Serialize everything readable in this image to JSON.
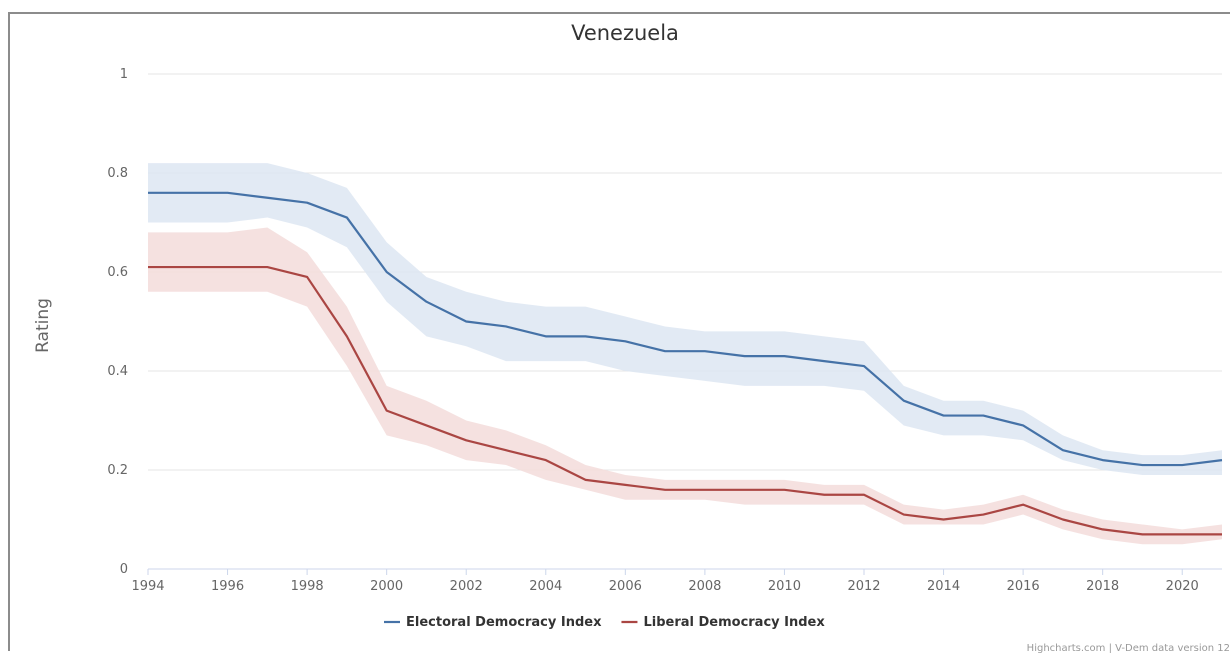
{
  "chart_data": {
    "type": "line",
    "title": "Venezuela",
    "ylabel": "Rating",
    "xlabel": "",
    "x": [
      1994,
      1995,
      1996,
      1997,
      1998,
      1999,
      2000,
      2001,
      2002,
      2003,
      2004,
      2005,
      2006,
      2007,
      2008,
      2009,
      2010,
      2011,
      2012,
      2013,
      2014,
      2015,
      2016,
      2017,
      2018,
      2019,
      2020,
      2021
    ],
    "xlim": [
      1994,
      2021
    ],
    "ylim": [
      0,
      1
    ],
    "x_ticks": [
      "1994",
      "1996",
      "1998",
      "2000",
      "2002",
      "2004",
      "2006",
      "2008",
      "2010",
      "2012",
      "2014",
      "2016",
      "2018",
      "2020"
    ],
    "y_ticks": [
      "0",
      "0.2",
      "0.4",
      "0.6",
      "0.8",
      "1"
    ],
    "grid": true,
    "legend_position": "bottom",
    "series": [
      {
        "name": "Electoral Democracy Index",
        "color": "#4572a7",
        "band_color": "#dde6f2",
        "values": [
          0.76,
          0.76,
          0.76,
          0.75,
          0.74,
          0.71,
          0.6,
          0.54,
          0.5,
          0.49,
          0.47,
          0.47,
          0.46,
          0.44,
          0.44,
          0.43,
          0.43,
          0.42,
          0.41,
          0.34,
          0.31,
          0.31,
          0.29,
          0.24,
          0.22,
          0.21,
          0.21,
          0.22
        ],
        "upper": [
          0.82,
          0.82,
          0.82,
          0.82,
          0.8,
          0.77,
          0.66,
          0.59,
          0.56,
          0.54,
          0.53,
          0.53,
          0.51,
          0.49,
          0.48,
          0.48,
          0.48,
          0.47,
          0.46,
          0.37,
          0.34,
          0.34,
          0.32,
          0.27,
          0.24,
          0.23,
          0.23,
          0.24
        ],
        "lower": [
          0.7,
          0.7,
          0.7,
          0.71,
          0.69,
          0.65,
          0.54,
          0.47,
          0.45,
          0.42,
          0.42,
          0.42,
          0.4,
          0.39,
          0.38,
          0.37,
          0.37,
          0.37,
          0.36,
          0.29,
          0.27,
          0.27,
          0.26,
          0.22,
          0.2,
          0.19,
          0.19,
          0.19
        ]
      },
      {
        "name": "Liberal Democracy Index",
        "color": "#aa4643",
        "band_color": "#f3dcdb",
        "values": [
          0.61,
          0.61,
          0.61,
          0.61,
          0.59,
          0.47,
          0.32,
          0.29,
          0.26,
          0.24,
          0.22,
          0.18,
          0.17,
          0.16,
          0.16,
          0.16,
          0.16,
          0.15,
          0.15,
          0.11,
          0.1,
          0.11,
          0.13,
          0.1,
          0.08,
          0.07,
          0.07,
          0.07
        ],
        "upper": [
          0.68,
          0.68,
          0.68,
          0.69,
          0.64,
          0.53,
          0.37,
          0.34,
          0.3,
          0.28,
          0.25,
          0.21,
          0.19,
          0.18,
          0.18,
          0.18,
          0.18,
          0.17,
          0.17,
          0.13,
          0.12,
          0.13,
          0.15,
          0.12,
          0.1,
          0.09,
          0.08,
          0.09
        ],
        "lower": [
          0.56,
          0.56,
          0.56,
          0.56,
          0.53,
          0.41,
          0.27,
          0.25,
          0.22,
          0.21,
          0.18,
          0.16,
          0.14,
          0.14,
          0.14,
          0.13,
          0.13,
          0.13,
          0.13,
          0.09,
          0.09,
          0.09,
          0.11,
          0.08,
          0.06,
          0.05,
          0.05,
          0.06
        ]
      }
    ]
  },
  "credits": "Highcharts.com | V-Dem data version 12"
}
